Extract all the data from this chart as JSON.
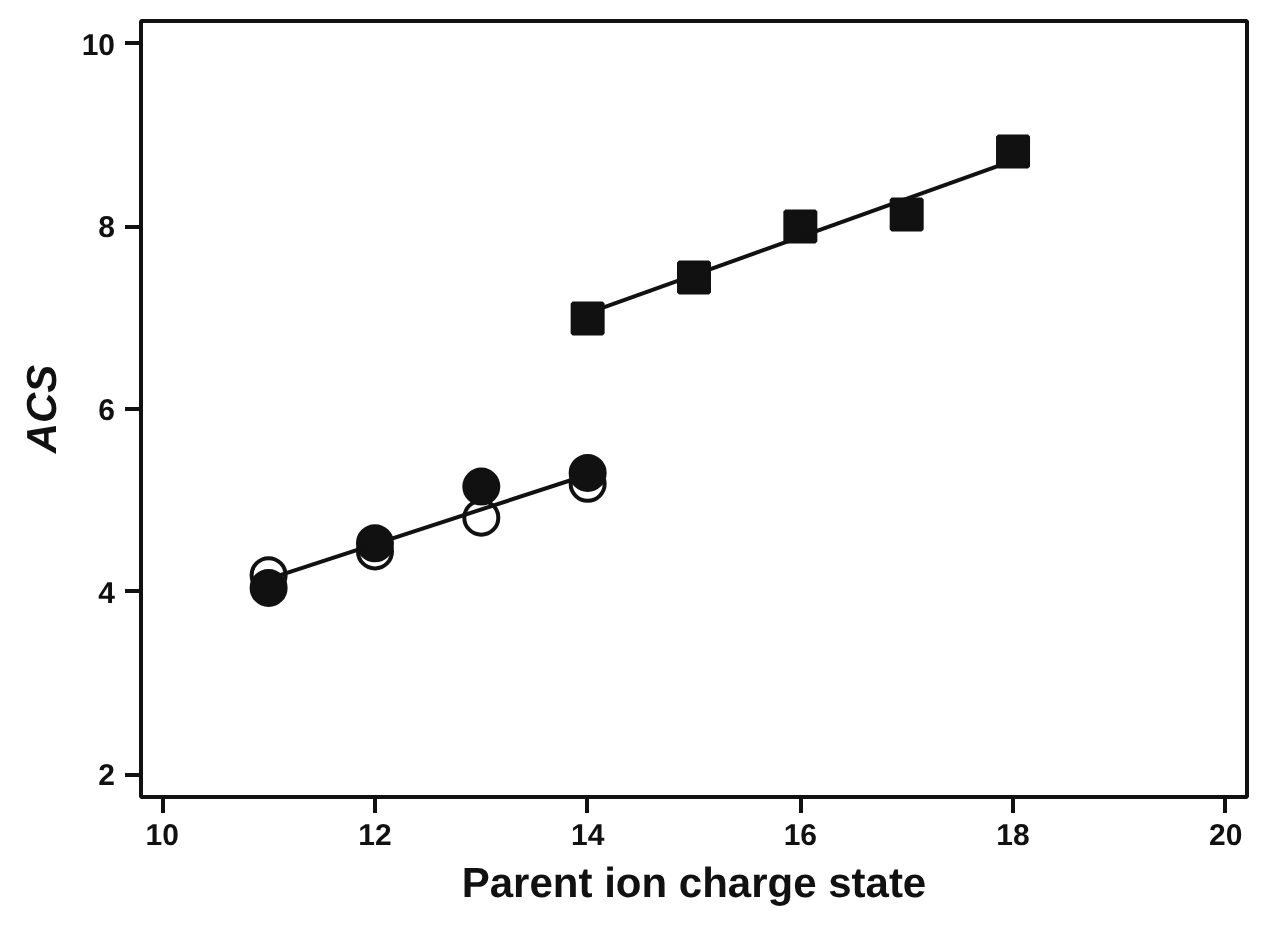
{
  "chart_data": {
    "type": "scatter",
    "xlabel": "Parent ion charge state",
    "ylabel": "ACS",
    "xlim": [
      9.8,
      20.2
    ],
    "ylim": [
      1.75,
      10.25
    ],
    "xticks": [
      10,
      12,
      14,
      16,
      18,
      20
    ],
    "yticks": [
      2,
      4,
      6,
      8,
      10
    ],
    "grid": false,
    "series": [
      {
        "marker": "circle",
        "color": "#ffffff",
        "x": [
          11,
          12,
          13,
          14
        ],
        "values": [
          4.18,
          4.44,
          4.81,
          5.18
        ]
      },
      {
        "marker": "circle",
        "color": "#111111",
        "x": [
          11,
          12,
          13,
          14
        ],
        "values": [
          4.04,
          4.53,
          5.15,
          5.3
        ]
      },
      {
        "marker": "square",
        "color": "#111111",
        "x": [
          14,
          15,
          16,
          17,
          18
        ],
        "values": [
          6.99,
          7.44,
          8.0,
          8.13,
          8.82
        ]
      },
      {
        "type": "line",
        "marker": "none",
        "color": "#111111",
        "x": [
          11,
          14
        ],
        "values": [
          4.14,
          5.28
        ]
      },
      {
        "type": "line",
        "marker": "none",
        "color": "#111111",
        "x": [
          14,
          18
        ],
        "values": [
          7.05,
          8.72
        ]
      }
    ]
  }
}
